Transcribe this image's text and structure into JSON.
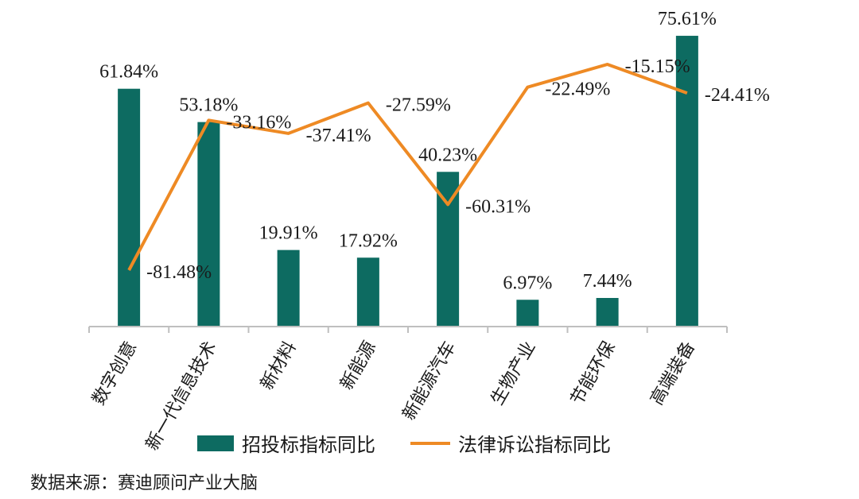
{
  "chart_data": {
    "type": "bar",
    "categories": [
      "数字创意",
      "新一代信息技术",
      "新材料",
      "新能源",
      "新能源汽车",
      "生物产业",
      "节能环保",
      "高端装备"
    ],
    "series": [
      {
        "name": "招投标指标同比",
        "type": "bar",
        "values": [
          61.84,
          53.18,
          19.91,
          17.92,
          40.23,
          6.97,
          7.44,
          75.61
        ],
        "labels": [
          "61.84%",
          "53.18%",
          "19.91%",
          "17.92%",
          "40.23%",
          "6.97%",
          "7.44%",
          "75.61%"
        ],
        "color": "#0d6b61"
      },
      {
        "name": "法律诉讼指标同比",
        "type": "line",
        "values": [
          -81.48,
          -33.16,
          -37.41,
          -27.59,
          -60.31,
          -22.49,
          -15.15,
          -24.41
        ],
        "labels": [
          "-81.48%",
          "-33.16%",
          "-37.41%",
          "-27.59%",
          "-60.31%",
          "-22.49%",
          "-15.15%",
          "-24.41%"
        ],
        "color": "#ee8a24"
      }
    ],
    "legend_position": "bottom",
    "grid": false
  },
  "source_text": "数据来源：赛迪顾问产业大脑"
}
